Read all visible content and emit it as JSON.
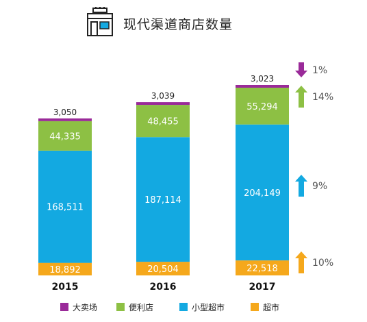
{
  "header": {
    "title": "现代渠道商店数量",
    "icon": "store-icon"
  },
  "chart_data": {
    "type": "bar",
    "stacked": true,
    "categories": [
      "2015",
      "2016",
      "2017"
    ],
    "series": [
      {
        "name": "超市",
        "color": "#F5A81C",
        "values": [
          18892,
          20504,
          22518
        ]
      },
      {
        "name": "小型超市",
        "color": "#13A9E1",
        "values": [
          168511,
          187114,
          204149
        ]
      },
      {
        "name": "便利店",
        "color": "#8DC044",
        "values": [
          44335,
          48455,
          55294
        ]
      },
      {
        "name": "大卖场",
        "color": "#9A2A99",
        "values": [
          3050,
          3039,
          3023
        ]
      }
    ],
    "value_labels": [
      [
        "18,892",
        "20,504",
        "22,518"
      ],
      [
        "168,511",
        "187,114",
        "204,149"
      ],
      [
        "44,335",
        "48,455",
        "55,294"
      ],
      [
        "3,050",
        "3,039",
        "3,023"
      ]
    ],
    "changes": [
      {
        "series": "大卖场",
        "label": "1%",
        "direction": "down",
        "color": "#9A2A99"
      },
      {
        "series": "便利店",
        "label": "14%",
        "direction": "up",
        "color": "#8DC044"
      },
      {
        "series": "小型超市",
        "label": "9%",
        "direction": "up",
        "color": "#13A9E1"
      },
      {
        "series": "超市",
        "label": "10%",
        "direction": "up",
        "color": "#F5A81C"
      }
    ],
    "legend": [
      "大卖场",
      "便利店",
      "小型超市",
      "超市"
    ],
    "legend_position": "bottom"
  }
}
